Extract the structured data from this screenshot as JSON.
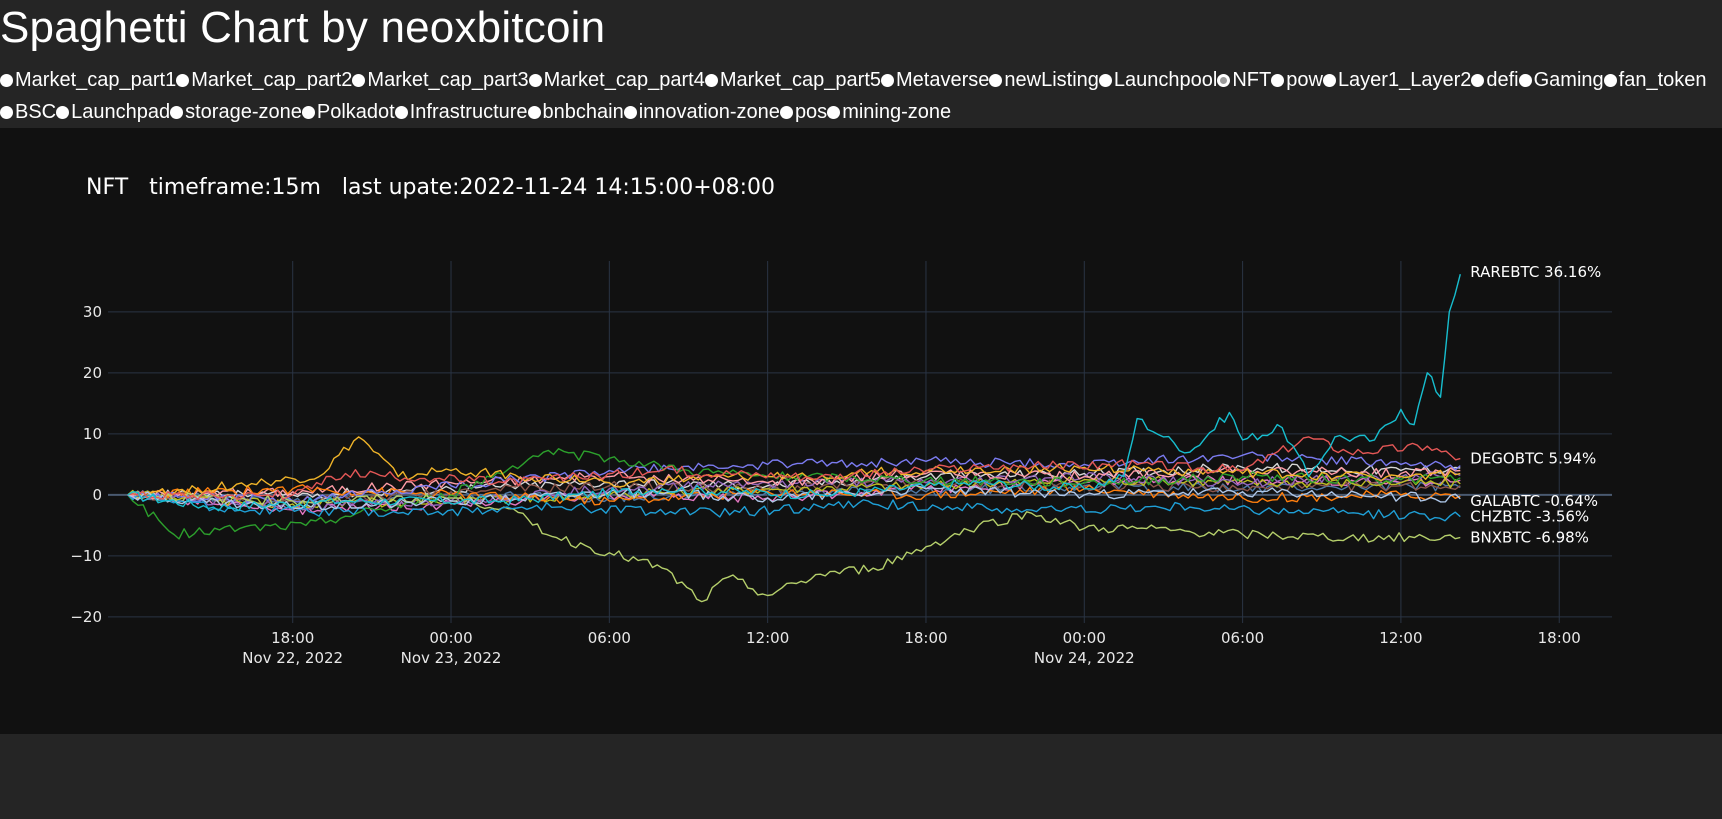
{
  "page": {
    "title": "Spaghetti Chart by neoxbitcoin"
  },
  "groups": {
    "selected": "NFT",
    "options": [
      "Market_cap_part1",
      "Market_cap_part2",
      "Market_cap_part3",
      "Market_cap_part4",
      "Market_cap_part5",
      "Metaverse",
      "newListing",
      "Launchpool",
      "NFT",
      "pow",
      "Layer1_Layer2",
      "defi",
      "Gaming",
      "fan_token",
      "BSC",
      "Launchpad",
      "storage-zone",
      "Polkadot",
      "Infrastructure",
      "bnbchain",
      "innovation-zone",
      "pos",
      "mining-zone"
    ]
  },
  "chart_data": {
    "type": "line",
    "title": "NFT   timeframe:15m   last upate:2022-11-24 14:15:00+08:00",
    "xlabel": "",
    "ylabel": "",
    "xlim": [
      "2022-11-22 11:00",
      "2022-11-24 20:00"
    ],
    "ylim": [
      -21,
      38
    ],
    "grid": true,
    "legend": "none",
    "x_ticks": [
      {
        "x": "2022-11-22 18:00",
        "label": "18:00",
        "sublabel": "Nov 22, 2022"
      },
      {
        "x": "2022-11-23 00:00",
        "label": "00:00",
        "sublabel": "Nov 23, 2022"
      },
      {
        "x": "2022-11-23 06:00",
        "label": "06:00",
        "sublabel": ""
      },
      {
        "x": "2022-11-23 12:00",
        "label": "12:00",
        "sublabel": ""
      },
      {
        "x": "2022-11-23 18:00",
        "label": "18:00",
        "sublabel": ""
      },
      {
        "x": "2022-11-24 00:00",
        "label": "00:00",
        "sublabel": "Nov 24, 2022"
      },
      {
        "x": "2022-11-24 06:00",
        "label": "06:00",
        "sublabel": ""
      },
      {
        "x": "2022-11-24 12:00",
        "label": "12:00",
        "sublabel": ""
      },
      {
        "x": "2022-11-24 18:00",
        "label": "18:00",
        "sublabel": ""
      }
    ],
    "y_ticks": [
      30,
      20,
      10,
      0,
      -10,
      -20
    ],
    "series": [
      {
        "name": "RAREBTC",
        "label": "RAREBTC 36.16%",
        "color": "#17becf",
        "points": [
          [
            "2022-11-22 11:45",
            0
          ],
          [
            "2022-11-22 15:00",
            -2
          ],
          [
            "2022-11-22 20:00",
            -1
          ],
          [
            "2022-11-23 02:00",
            -1
          ],
          [
            "2022-11-23 08:00",
            1
          ],
          [
            "2022-11-23 14:00",
            0
          ],
          [
            "2022-11-23 20:00",
            2
          ],
          [
            "2022-11-24 00:00",
            1
          ],
          [
            "2022-11-24 01:30",
            3
          ],
          [
            "2022-11-24 02:00",
            12.5
          ],
          [
            "2022-11-24 03:00",
            9.5
          ],
          [
            "2022-11-24 04:00",
            7
          ],
          [
            "2022-11-24 05:30",
            13.5
          ],
          [
            "2022-11-24 06:00",
            9
          ],
          [
            "2022-11-24 07:30",
            11
          ],
          [
            "2022-11-24 08:30",
            3
          ],
          [
            "2022-11-24 09:30",
            9.5
          ],
          [
            "2022-11-24 11:00",
            9
          ],
          [
            "2022-11-24 12:00",
            14
          ],
          [
            "2022-11-24 12:30",
            11.5
          ],
          [
            "2022-11-24 13:00",
            20
          ],
          [
            "2022-11-24 13:30",
            16
          ],
          [
            "2022-11-24 13:50",
            30
          ],
          [
            "2022-11-24 14:15",
            36.16
          ]
        ]
      },
      {
        "name": "DEGOBTC",
        "label": "DEGOBTC 5.94%",
        "color": "#e45756",
        "points": [
          [
            "2022-11-22 11:45",
            0
          ],
          [
            "2022-11-22 18:00",
            0
          ],
          [
            "2022-11-22 20:00",
            3.5
          ],
          [
            "2022-11-23 02:00",
            2
          ],
          [
            "2022-11-23 08:00",
            4
          ],
          [
            "2022-11-23 14:00",
            3
          ],
          [
            "2022-11-23 20:00",
            4.5
          ],
          [
            "2022-11-24 02:00",
            5
          ],
          [
            "2022-11-24 06:00",
            4
          ],
          [
            "2022-11-24 08:30",
            9.5
          ],
          [
            "2022-11-24 10:00",
            7
          ],
          [
            "2022-11-24 13:00",
            8
          ],
          [
            "2022-11-24 14:15",
            5.94
          ]
        ]
      },
      {
        "name": "GALABTC",
        "label": "GALABTC -0.64%",
        "color": "#aec7e8",
        "points": [
          [
            "2022-11-22 11:45",
            0
          ],
          [
            "2022-11-22 17:00",
            -2
          ],
          [
            "2022-11-23 00:00",
            -1
          ],
          [
            "2022-11-23 06:00",
            0.5
          ],
          [
            "2022-11-23 12:00",
            -0.5
          ],
          [
            "2022-11-23 18:00",
            1
          ],
          [
            "2022-11-24 00:00",
            0
          ],
          [
            "2022-11-24 06:00",
            0.5
          ],
          [
            "2022-11-24 12:00",
            -0.3
          ],
          [
            "2022-11-24 14:15",
            -0.64
          ]
        ]
      },
      {
        "name": "CHZBTC",
        "label": "CHZBTC -3.56%",
        "color": "#1f9fd6",
        "points": [
          [
            "2022-11-22 11:45",
            0
          ],
          [
            "2022-11-22 16:00",
            -2.5
          ],
          [
            "2022-11-22 22:00",
            -3
          ],
          [
            "2022-11-23 04:00",
            -2
          ],
          [
            "2022-11-23 10:00",
            -3
          ],
          [
            "2022-11-23 16:00",
            -1.5
          ],
          [
            "2022-11-23 22:00",
            -2.5
          ],
          [
            "2022-11-24 04:00",
            -2
          ],
          [
            "2022-11-24 10:00",
            -3
          ],
          [
            "2022-11-24 14:15",
            -3.56
          ]
        ]
      },
      {
        "name": "BNXBTC",
        "label": "BNXBTC -6.98%",
        "color": "#b5cf6b",
        "points": [
          [
            "2022-11-22 11:45",
            0
          ],
          [
            "2022-11-22 18:00",
            -1
          ],
          [
            "2022-11-23 00:00",
            -0.5
          ],
          [
            "2022-11-23 02:00",
            -2
          ],
          [
            "2022-11-23 04:00",
            -7
          ],
          [
            "2022-11-23 06:00",
            -9.5
          ],
          [
            "2022-11-23 08:00",
            -12
          ],
          [
            "2022-11-23 09:30",
            -17.5
          ],
          [
            "2022-11-23 10:30",
            -13.5
          ],
          [
            "2022-11-23 12:00",
            -16.5
          ],
          [
            "2022-11-23 14:00",
            -13
          ],
          [
            "2022-11-23 16:00",
            -12
          ],
          [
            "2022-11-23 18:00",
            -8.5
          ],
          [
            "2022-11-23 20:00",
            -5
          ],
          [
            "2022-11-23 22:00",
            -3
          ],
          [
            "2022-11-24 00:00",
            -5.5
          ],
          [
            "2022-11-24 02:00",
            -5.5
          ],
          [
            "2022-11-24 04:00",
            -6
          ],
          [
            "2022-11-24 06:00",
            -6.5
          ],
          [
            "2022-11-24 10:00",
            -7
          ],
          [
            "2022-11-24 14:15",
            -6.98
          ]
        ]
      },
      {
        "name": "",
        "label": "",
        "color": "#f0b429",
        "points": [
          [
            "2022-11-22 11:45",
            0
          ],
          [
            "2022-11-22 17:00",
            2
          ],
          [
            "2022-11-22 19:00",
            3
          ],
          [
            "2022-11-22 20:30",
            9.5
          ],
          [
            "2022-11-22 22:00",
            3
          ],
          [
            "2022-11-23 00:00",
            4
          ],
          [
            "2022-11-23 06:00",
            2
          ],
          [
            "2022-11-23 12:00",
            3
          ],
          [
            "2022-11-23 18:00",
            4
          ],
          [
            "2022-11-24 00:00",
            4.5
          ],
          [
            "2022-11-24 06:00",
            3.5
          ],
          [
            "2022-11-24 12:00",
            3
          ],
          [
            "2022-11-24 14:15",
            3.5
          ]
        ]
      },
      {
        "name": "",
        "label": "",
        "color": "#2ca02c",
        "points": [
          [
            "2022-11-22 11:45",
            0
          ],
          [
            "2022-11-22 13:30",
            -6.5
          ],
          [
            "2022-11-22 16:00",
            -5.5
          ],
          [
            "2022-11-22 18:30",
            -5
          ],
          [
            "2022-11-22 20:00",
            -3.5
          ],
          [
            "2022-11-23 00:00",
            0
          ],
          [
            "2022-11-23 03:30",
            7
          ],
          [
            "2022-11-23 06:00",
            6
          ],
          [
            "2022-11-23 09:00",
            4
          ],
          [
            "2022-11-23 12:00",
            3
          ],
          [
            "2022-11-23 18:00",
            2.5
          ],
          [
            "2022-11-24 00:00",
            2
          ],
          [
            "2022-11-24 06:00",
            3
          ],
          [
            "2022-11-24 12:00",
            2.5
          ],
          [
            "2022-11-24 14:15",
            2.8
          ]
        ]
      },
      {
        "name": "",
        "label": "",
        "color": "#7b7bf0",
        "points": [
          [
            "2022-11-22 11:45",
            0
          ],
          [
            "2022-11-22 18:00",
            -1
          ],
          [
            "2022-11-23 00:00",
            1.5
          ],
          [
            "2022-11-23 06:00",
            4
          ],
          [
            "2022-11-23 12:00",
            5
          ],
          [
            "2022-11-23 18:00",
            5.5
          ],
          [
            "2022-11-24 00:00",
            5
          ],
          [
            "2022-11-24 06:00",
            6.5
          ],
          [
            "2022-11-24 12:00",
            5
          ],
          [
            "2022-11-24 14:15",
            4.8
          ]
        ]
      },
      {
        "name": "",
        "label": "",
        "color": "#ff7f0e",
        "points": [
          [
            "2022-11-22 11:45",
            0
          ],
          [
            "2022-11-22 18:00",
            1
          ],
          [
            "2022-11-23 00:00",
            0
          ],
          [
            "2022-11-23 06:00",
            -1
          ],
          [
            "2022-11-23 12:00",
            0.5
          ],
          [
            "2022-11-23 18:00",
            0
          ],
          [
            "2022-11-24 00:00",
            1
          ],
          [
            "2022-11-24 06:00",
            -0.5
          ],
          [
            "2022-11-24 12:00",
            0
          ],
          [
            "2022-11-24 14:15",
            -0.2
          ]
        ]
      },
      {
        "name": "",
        "label": "",
        "color": "#ff9da7",
        "points": [
          [
            "2022-11-22 11:45",
            0
          ],
          [
            "2022-11-22 18:00",
            0.5
          ],
          [
            "2022-11-23 00:00",
            2
          ],
          [
            "2022-11-23 06:00",
            3
          ],
          [
            "2022-11-23 12:00",
            2
          ],
          [
            "2022-11-23 18:00",
            3.5
          ],
          [
            "2022-11-24 00:00",
            3
          ],
          [
            "2022-11-24 06:00",
            4
          ],
          [
            "2022-11-24 12:00",
            3.5
          ],
          [
            "2022-11-24 14:15",
            4
          ]
        ]
      },
      {
        "name": "",
        "label": "",
        "color": "#9467bd",
        "points": [
          [
            "2022-11-22 11:45",
            0
          ],
          [
            "2022-11-22 18:00",
            -2
          ],
          [
            "2022-11-23 00:00",
            -1
          ],
          [
            "2022-11-23 06:00",
            1
          ],
          [
            "2022-11-23 12:00",
            2
          ],
          [
            "2022-11-23 18:00",
            2
          ],
          [
            "2022-11-24 00:00",
            3
          ],
          [
            "2022-11-24 06:00",
            2
          ],
          [
            "2022-11-24 12:00",
            3
          ],
          [
            "2022-11-24 14:15",
            3.2
          ]
        ]
      },
      {
        "name": "",
        "label": "",
        "color": "#bcbd22",
        "points": [
          [
            "2022-11-22 11:45",
            0
          ],
          [
            "2022-11-22 18:00",
            -1.5
          ],
          [
            "2022-11-23 00:00",
            -1
          ],
          [
            "2022-11-23 06:00",
            0
          ],
          [
            "2022-11-23 12:00",
            1
          ],
          [
            "2022-11-23 18:00",
            1.5
          ],
          [
            "2022-11-24 00:00",
            2.5
          ],
          [
            "2022-11-24 06:00",
            2
          ],
          [
            "2022-11-24 12:00",
            2
          ],
          [
            "2022-11-24 14:15",
            1.8
          ]
        ]
      },
      {
        "name": "",
        "label": "",
        "color": "#8c564b",
        "points": [
          [
            "2022-11-22 11:45",
            0
          ],
          [
            "2022-11-22 18:00",
            -1
          ],
          [
            "2022-11-23 00:00",
            0.5
          ],
          [
            "2022-11-23 06:00",
            1.5
          ],
          [
            "2022-11-23 12:00",
            1
          ],
          [
            "2022-11-23 18:00",
            2
          ],
          [
            "2022-11-24 00:00",
            1.5
          ],
          [
            "2022-11-24 06:00",
            1
          ],
          [
            "2022-11-24 12:00",
            1.5
          ],
          [
            "2022-11-24 14:15",
            1.5
          ]
        ]
      },
      {
        "name": "",
        "label": "",
        "color": "#e377c2",
        "points": [
          [
            "2022-11-22 11:45",
            0
          ],
          [
            "2022-11-22 18:00",
            -2.5
          ],
          [
            "2022-11-23 00:00",
            -1.5
          ],
          [
            "2022-11-23 06:00",
            0
          ],
          [
            "2022-11-23 12:00",
            -0.5
          ],
          [
            "2022-11-23 18:00",
            1
          ],
          [
            "2022-11-24 00:00",
            2
          ],
          [
            "2022-11-24 06:00",
            2.5
          ],
          [
            "2022-11-24 12:00",
            2
          ],
          [
            "2022-11-24 14:15",
            2.4
          ]
        ]
      },
      {
        "name": "",
        "label": "",
        "color": "#d6d6d6",
        "points": [
          [
            "2022-11-22 11:45",
            0
          ],
          [
            "2022-11-22 18:00",
            0
          ],
          [
            "2022-11-23 00:00",
            1
          ],
          [
            "2022-11-23 06:00",
            2
          ],
          [
            "2022-11-23 12:00",
            1.5
          ],
          [
            "2022-11-23 18:00",
            3
          ],
          [
            "2022-11-24 00:00",
            3.5
          ],
          [
            "2022-11-24 06:00",
            4.5
          ],
          [
            "2022-11-24 12:00",
            4
          ],
          [
            "2022-11-24 14:15",
            4.4
          ]
        ]
      },
      {
        "name": "",
        "label": "",
        "color": "#4e79a7",
        "points": [
          [
            "2022-11-22 11:45",
            0
          ],
          [
            "2022-11-22 18:00",
            -1
          ],
          [
            "2022-11-23 00:00",
            0
          ],
          [
            "2022-11-23 06:00",
            -0.5
          ],
          [
            "2022-11-23 12:00",
            0.5
          ],
          [
            "2022-11-23 18:00",
            0.5
          ],
          [
            "2022-11-24 00:00",
            1.5
          ],
          [
            "2022-11-24 06:00",
            1
          ],
          [
            "2022-11-24 12:00",
            1.5
          ],
          [
            "2022-11-24 14:15",
            1.2
          ]
        ]
      }
    ]
  }
}
